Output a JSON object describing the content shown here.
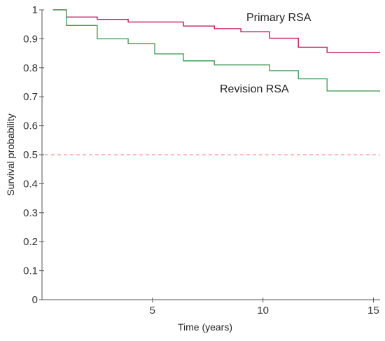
{
  "chart_data": {
    "type": "line",
    "subtype": "kaplan-meier step",
    "xlabel": "Time (years)",
    "ylabel": "Survival probability",
    "xlim": [
      0,
      15.3
    ],
    "ylim": [
      0,
      1.0
    ],
    "x_ticks": [
      5,
      10,
      15
    ],
    "y_ticks": [
      0,
      0.1,
      0.2,
      0.3,
      0.4,
      0.5,
      0.6,
      0.7,
      0.8,
      0.9,
      1
    ],
    "x_tick_labels": [
      "5",
      "10",
      "15"
    ],
    "y_tick_labels": [
      "0",
      "0.1",
      "0.2",
      "0.3",
      "0.4",
      "0.5",
      "0.6",
      "0.7",
      "0.8",
      "0.9",
      "1"
    ],
    "grid": false,
    "reference_line": {
      "y": 0.5,
      "style": "dashed",
      "color": "#f08080"
    },
    "series": [
      {
        "name": "Primary RSA",
        "color": "#c2185b",
        "x": [
          0.5,
          1.1,
          2.5,
          3.9,
          6.4,
          7.8,
          9.0,
          10.3,
          11.6,
          12.9,
          15.3
        ],
        "y": [
          1.0,
          0.975,
          0.967,
          0.958,
          0.944,
          0.935,
          0.924,
          0.902,
          0.871,
          0.853,
          0.853
        ]
      },
      {
        "name": "Revision RSA",
        "color": "#4a9e5c",
        "x": [
          0.5,
          1.1,
          2.5,
          3.9,
          5.1,
          6.4,
          7.8,
          10.3,
          11.6,
          12.9,
          15.3
        ],
        "y": [
          1.0,
          0.946,
          0.9,
          0.883,
          0.848,
          0.824,
          0.81,
          0.79,
          0.762,
          0.72,
          0.72
        ]
      }
    ]
  }
}
